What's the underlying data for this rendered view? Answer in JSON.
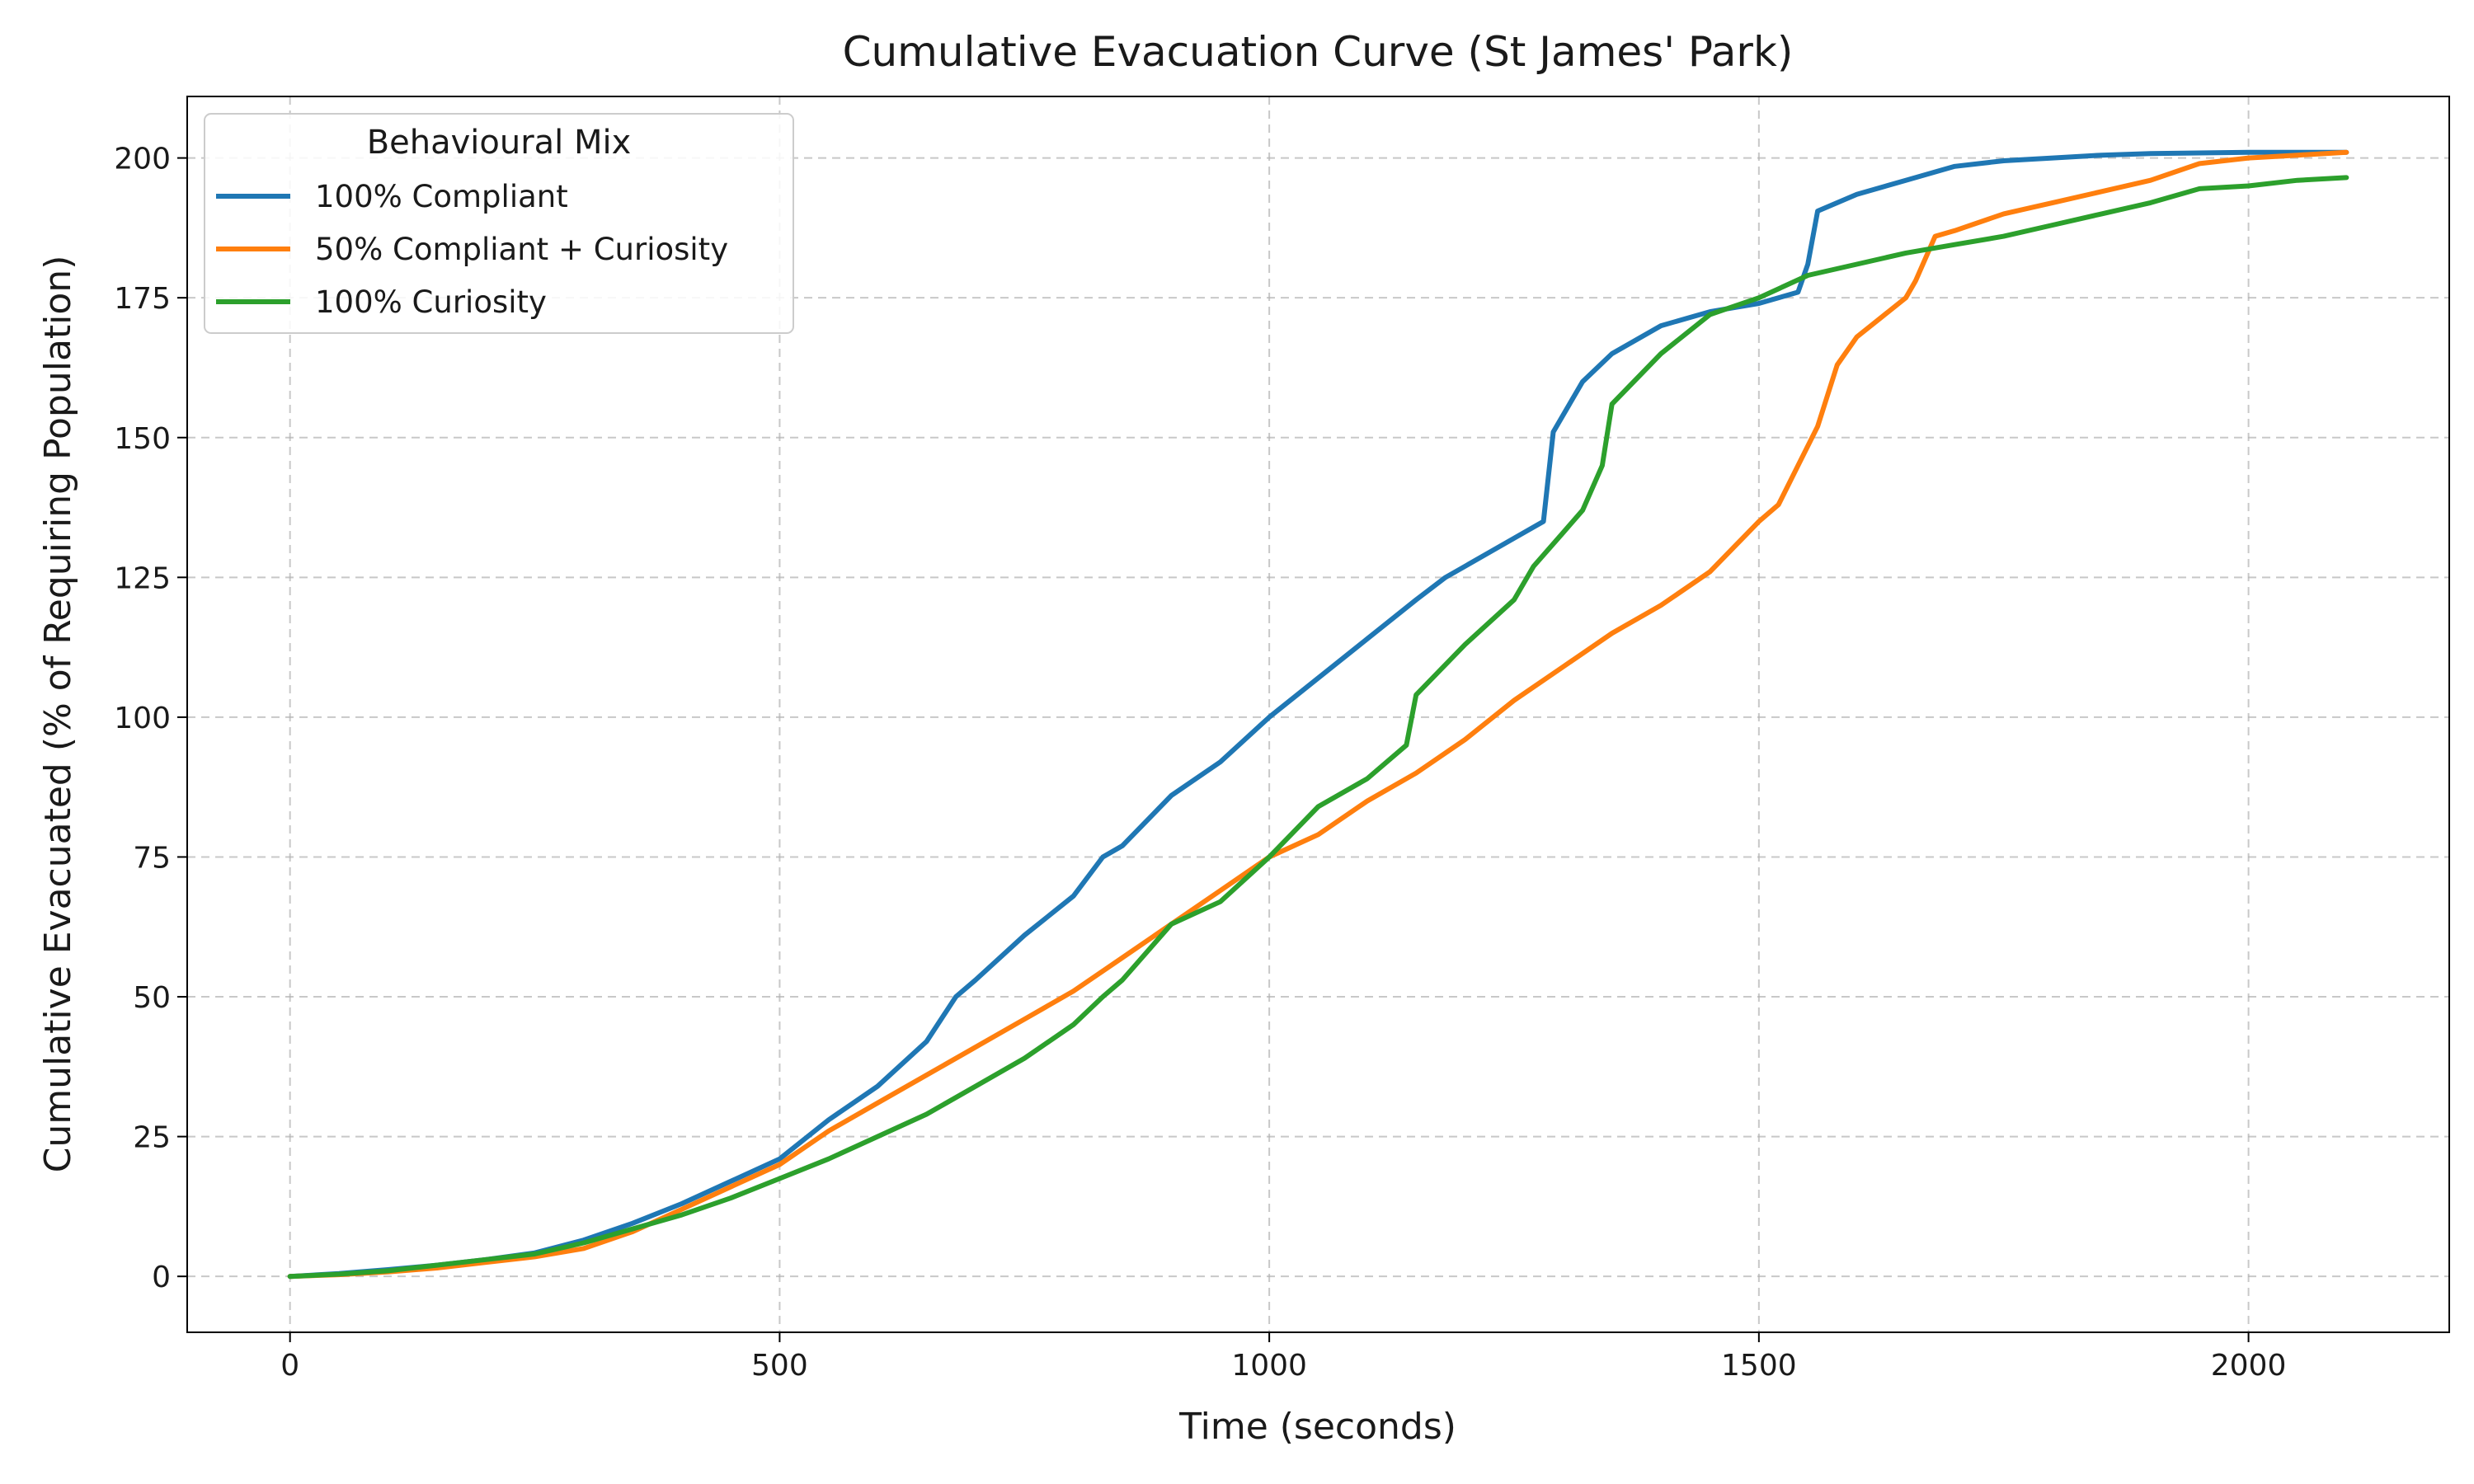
{
  "chart_data": {
    "type": "line",
    "title": "Cumulative Evacuation Curve (St James' Park)",
    "xlabel": "Time (seconds)",
    "ylabel": "Cumulative Evacuated (% of Requiring Population)",
    "xlim": [
      -105,
      2205
    ],
    "ylim": [
      -10,
      211
    ],
    "xticks": [
      0,
      500,
      1000,
      1500,
      2000
    ],
    "xtick_labels": [
      "0",
      "500",
      "1000",
      "1500",
      "2000"
    ],
    "yticks": [
      0,
      25,
      50,
      75,
      100,
      125,
      150,
      175,
      200
    ],
    "ytick_labels": [
      "0",
      "25",
      "50",
      "75",
      "100",
      "125",
      "150",
      "175",
      "200"
    ],
    "grid": true,
    "legend": {
      "title": "Behavioural Mix",
      "position": "top-left"
    },
    "series": [
      {
        "name": "100% Compliant",
        "color": "#1f77b4",
        "points": [
          [
            0,
            0
          ],
          [
            50,
            0.5
          ],
          [
            100,
            1.2
          ],
          [
            150,
            2
          ],
          [
            200,
            3
          ],
          [
            250,
            4.2
          ],
          [
            300,
            6.5
          ],
          [
            350,
            9.5
          ],
          [
            400,
            13
          ],
          [
            450,
            17
          ],
          [
            500,
            21
          ],
          [
            550,
            28
          ],
          [
            600,
            34
          ],
          [
            650,
            42
          ],
          [
            680,
            50
          ],
          [
            700,
            53
          ],
          [
            750,
            61
          ],
          [
            800,
            68
          ],
          [
            830,
            75
          ],
          [
            850,
            77
          ],
          [
            900,
            86
          ],
          [
            950,
            92
          ],
          [
            1000,
            100
          ],
          [
            1050,
            107
          ],
          [
            1100,
            114
          ],
          [
            1150,
            121
          ],
          [
            1180,
            125
          ],
          [
            1200,
            127
          ],
          [
            1250,
            132
          ],
          [
            1280,
            135
          ],
          [
            1290,
            151
          ],
          [
            1320,
            160
          ],
          [
            1350,
            165
          ],
          [
            1400,
            170
          ],
          [
            1450,
            172.5
          ],
          [
            1500,
            174
          ],
          [
            1540,
            176
          ],
          [
            1550,
            181
          ],
          [
            1560,
            190.5
          ],
          [
            1600,
            193.5
          ],
          [
            1650,
            196
          ],
          [
            1700,
            198.5
          ],
          [
            1750,
            199.5
          ],
          [
            1800,
            200
          ],
          [
            1850,
            200.5
          ],
          [
            1900,
            200.8
          ],
          [
            2000,
            201
          ],
          [
            2100,
            201
          ]
        ]
      },
      {
        "name": "50% Compliant + Curiosity",
        "color": "#ff7f0e",
        "points": [
          [
            0,
            0
          ],
          [
            50,
            0.3
          ],
          [
            100,
            0.8
          ],
          [
            150,
            1.5
          ],
          [
            200,
            2.5
          ],
          [
            250,
            3.5
          ],
          [
            300,
            5
          ],
          [
            350,
            8
          ],
          [
            400,
            12
          ],
          [
            450,
            16
          ],
          [
            500,
            20
          ],
          [
            550,
            26
          ],
          [
            600,
            31
          ],
          [
            650,
            36
          ],
          [
            700,
            41
          ],
          [
            750,
            46
          ],
          [
            800,
            51
          ],
          [
            850,
            57
          ],
          [
            900,
            63
          ],
          [
            950,
            69
          ],
          [
            1000,
            75
          ],
          [
            1050,
            79
          ],
          [
            1100,
            85
          ],
          [
            1150,
            90
          ],
          [
            1200,
            96
          ],
          [
            1250,
            103
          ],
          [
            1300,
            109
          ],
          [
            1350,
            115
          ],
          [
            1400,
            120
          ],
          [
            1450,
            126
          ],
          [
            1500,
            135
          ],
          [
            1520,
            138
          ],
          [
            1540,
            145
          ],
          [
            1560,
            152
          ],
          [
            1580,
            163
          ],
          [
            1600,
            168
          ],
          [
            1650,
            175
          ],
          [
            1660,
            178
          ],
          [
            1680,
            186
          ],
          [
            1700,
            187
          ],
          [
            1750,
            190
          ],
          [
            1800,
            192
          ],
          [
            1850,
            194
          ],
          [
            1900,
            196
          ],
          [
            1950,
            199
          ],
          [
            2000,
            200
          ],
          [
            2050,
            200.5
          ],
          [
            2100,
            201
          ]
        ]
      },
      {
        "name": "100% Curiosity",
        "color": "#2ca02c",
        "points": [
          [
            0,
            0
          ],
          [
            50,
            0.4
          ],
          [
            100,
            1
          ],
          [
            150,
            2
          ],
          [
            200,
            3
          ],
          [
            250,
            4
          ],
          [
            300,
            6
          ],
          [
            350,
            8.5
          ],
          [
            400,
            11
          ],
          [
            450,
            14
          ],
          [
            500,
            17.5
          ],
          [
            550,
            21
          ],
          [
            600,
            25
          ],
          [
            650,
            29
          ],
          [
            700,
            34
          ],
          [
            750,
            39
          ],
          [
            800,
            45
          ],
          [
            830,
            50
          ],
          [
            850,
            53
          ],
          [
            900,
            63
          ],
          [
            950,
            67
          ],
          [
            1000,
            75
          ],
          [
            1050,
            84
          ],
          [
            1100,
            89
          ],
          [
            1140,
            95
          ],
          [
            1150,
            104
          ],
          [
            1200,
            113
          ],
          [
            1250,
            121
          ],
          [
            1270,
            127
          ],
          [
            1300,
            133
          ],
          [
            1320,
            137
          ],
          [
            1340,
            145
          ],
          [
            1350,
            156
          ],
          [
            1400,
            165
          ],
          [
            1450,
            172
          ],
          [
            1500,
            175
          ],
          [
            1550,
            179
          ],
          [
            1600,
            181
          ],
          [
            1650,
            183
          ],
          [
            1700,
            184.5
          ],
          [
            1750,
            186
          ],
          [
            1800,
            188
          ],
          [
            1850,
            190
          ],
          [
            1900,
            192
          ],
          [
            1950,
            194.5
          ],
          [
            2000,
            195
          ],
          [
            2050,
            196
          ],
          [
            2100,
            196.5
          ]
        ]
      }
    ]
  }
}
